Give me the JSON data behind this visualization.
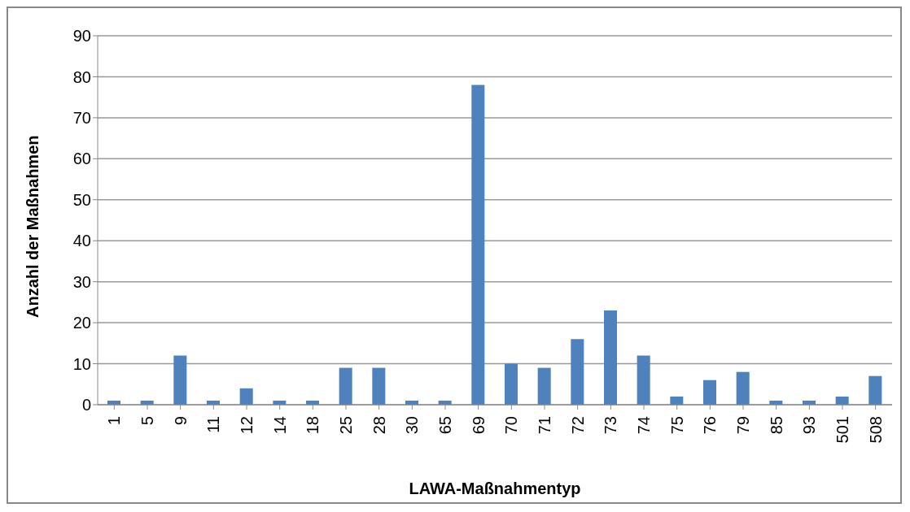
{
  "chart_data": {
    "type": "bar",
    "xlabel": "LAWA-Maßnahmentyp",
    "ylabel": "Anzahl der Maßnahmen",
    "categories": [
      "1",
      "5",
      "9",
      "11",
      "12",
      "14",
      "18",
      "25",
      "28",
      "30",
      "65",
      "69",
      "70",
      "71",
      "72",
      "73",
      "74",
      "75",
      "76",
      "79",
      "85",
      "93",
      "501",
      "508"
    ],
    "values": [
      1,
      1,
      12,
      1,
      4,
      1,
      1,
      9,
      9,
      1,
      1,
      78,
      10,
      9,
      16,
      23,
      12,
      2,
      6,
      8,
      1,
      1,
      2,
      7
    ],
    "color": "#4f81bd",
    "ylim": [
      0,
      90
    ],
    "yticks": [
      0,
      10,
      20,
      30,
      40,
      50,
      60,
      70,
      80,
      90
    ],
    "grid": "y"
  }
}
